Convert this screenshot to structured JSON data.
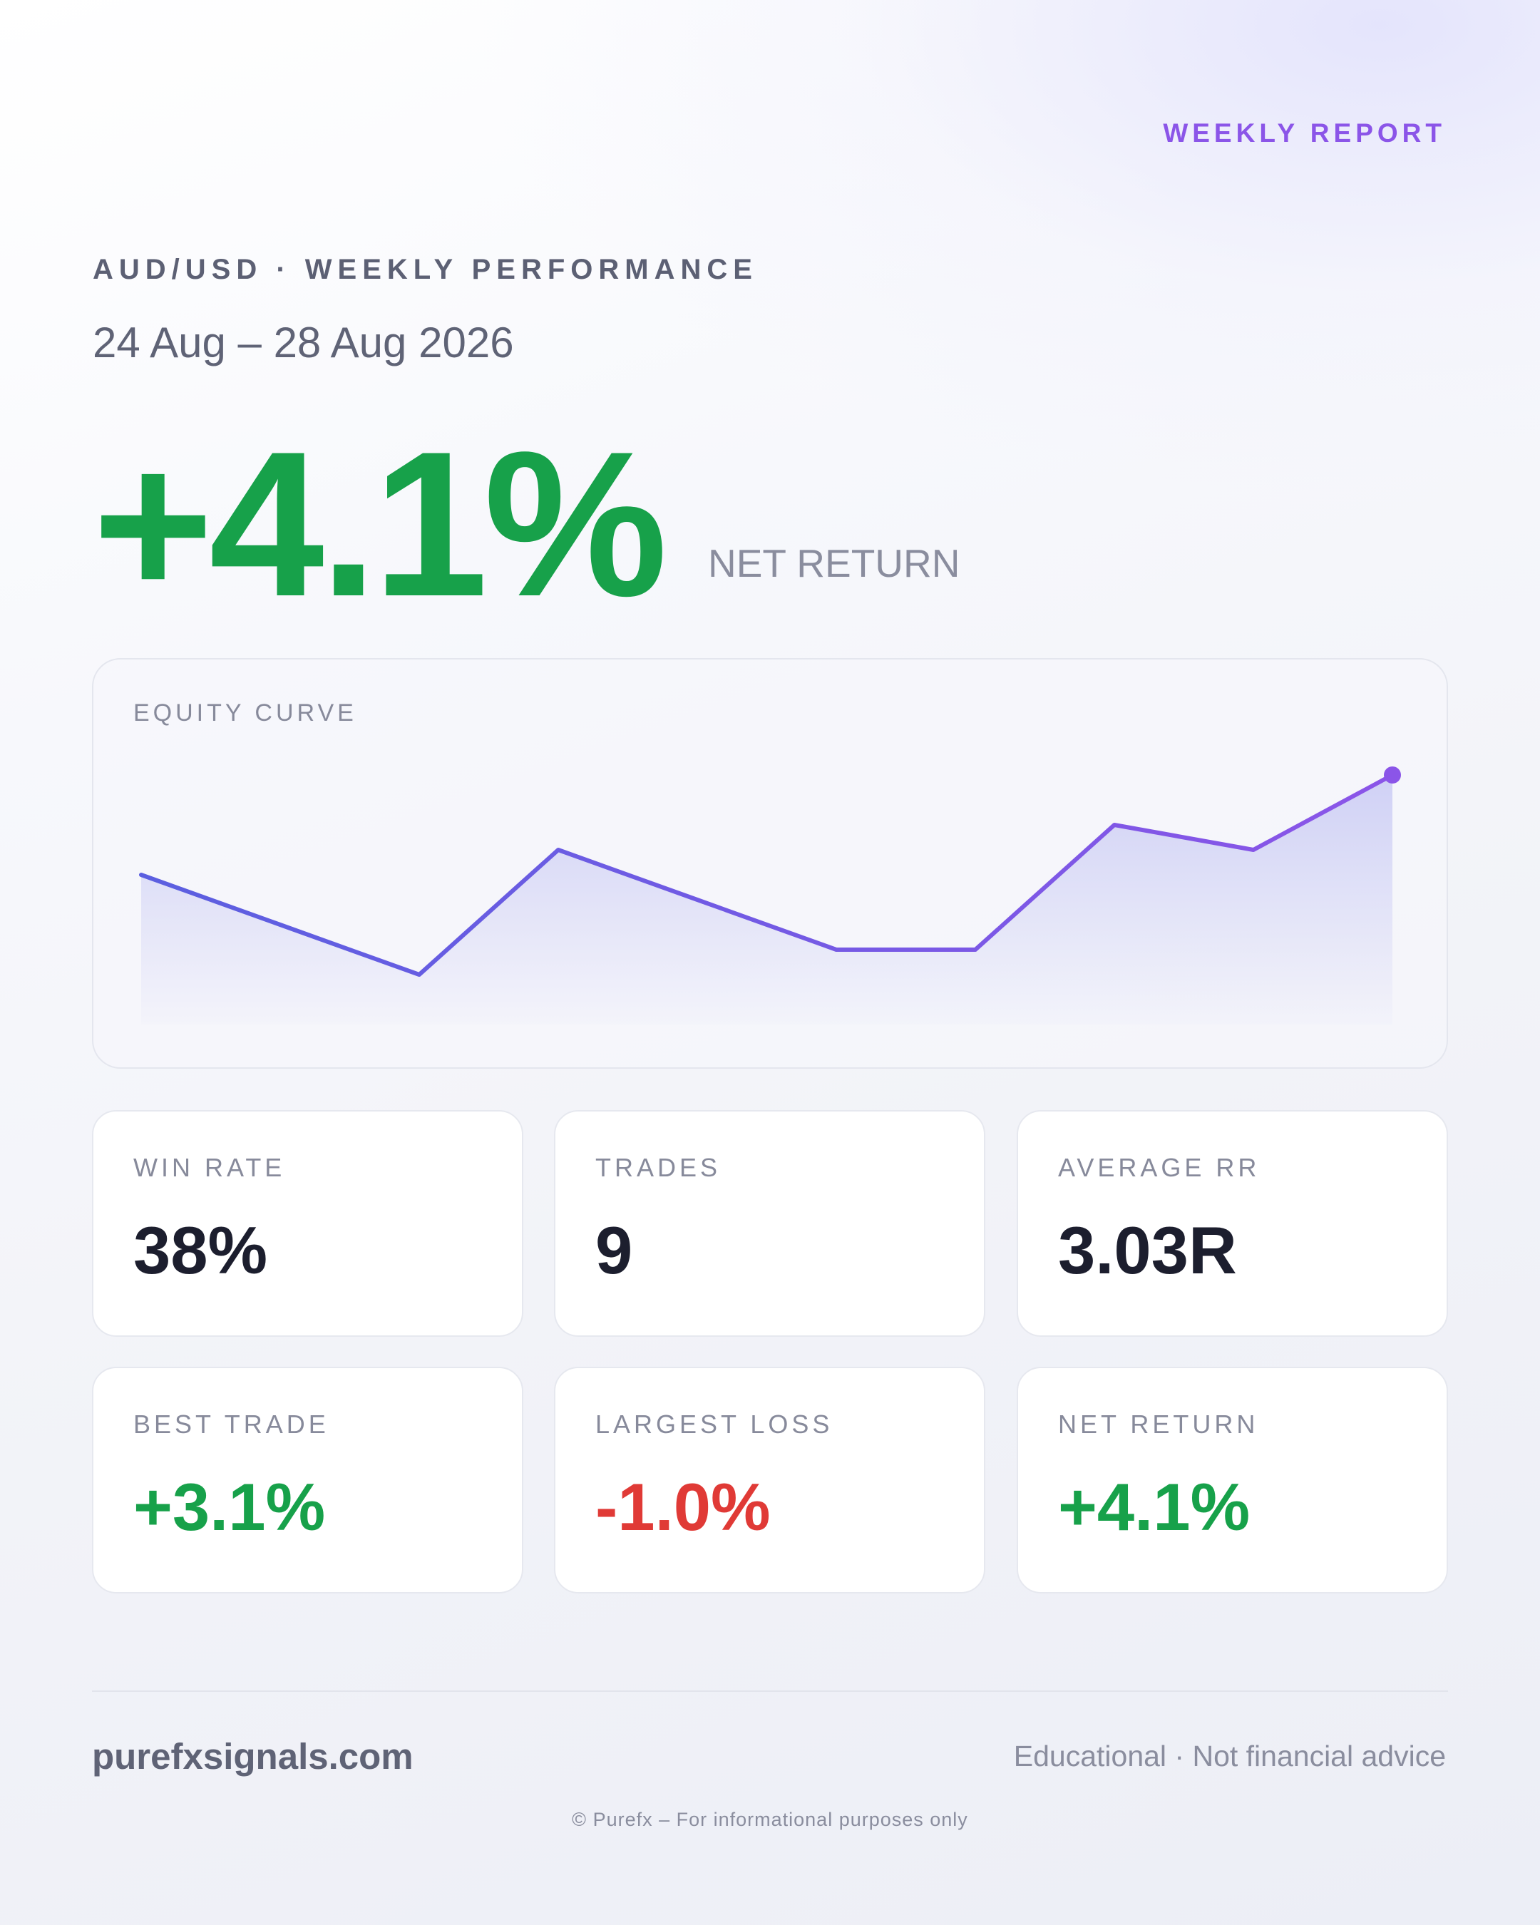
{
  "header": {
    "tag": "WEEKLY REPORT",
    "pair_heading": "AUD/USD · WEEKLY PERFORMANCE",
    "date_range": "24 Aug – 28 Aug 2026"
  },
  "hero": {
    "value": "+4.1%",
    "label": "NET RETURN"
  },
  "chart_data": {
    "type": "area",
    "title": "EQUITY CURVE",
    "x": [
      0,
      1,
      2,
      3,
      4,
      5,
      6,
      7,
      8,
      9
    ],
    "values": [
      3.0,
      2.0,
      1.0,
      3.5,
      2.5,
      1.5,
      1.5,
      4.0,
      3.5,
      5.0
    ],
    "ylim": [
      0,
      5.6
    ],
    "grid": false,
    "colors": {
      "line_start": "#5b5fe0",
      "line_end": "#8b55e8",
      "fill": "#c9caf4",
      "endpoint": "#8b55e8"
    }
  },
  "stats": [
    {
      "label": "WIN RATE",
      "value": "38%",
      "tone": "neutral"
    },
    {
      "label": "TRADES",
      "value": "9",
      "tone": "neutral"
    },
    {
      "label": "AVERAGE RR",
      "value": "3.03R",
      "tone": "neutral"
    },
    {
      "label": "BEST TRADE",
      "value": "+3.1%",
      "tone": "pos"
    },
    {
      "label": "LARGEST LOSS",
      "value": "-1.0%",
      "tone": "neg"
    },
    {
      "label": "NET RETURN",
      "value": "+4.1%",
      "tone": "pos"
    }
  ],
  "footer": {
    "site": "purefxsignals.com",
    "disclaimer": "Educational · Not financial advice",
    "copyright": "© Purefx – For informational purposes only"
  },
  "colors": {
    "accent": "#8b55e8",
    "positive": "#17a14a",
    "negative": "#e03a36"
  }
}
